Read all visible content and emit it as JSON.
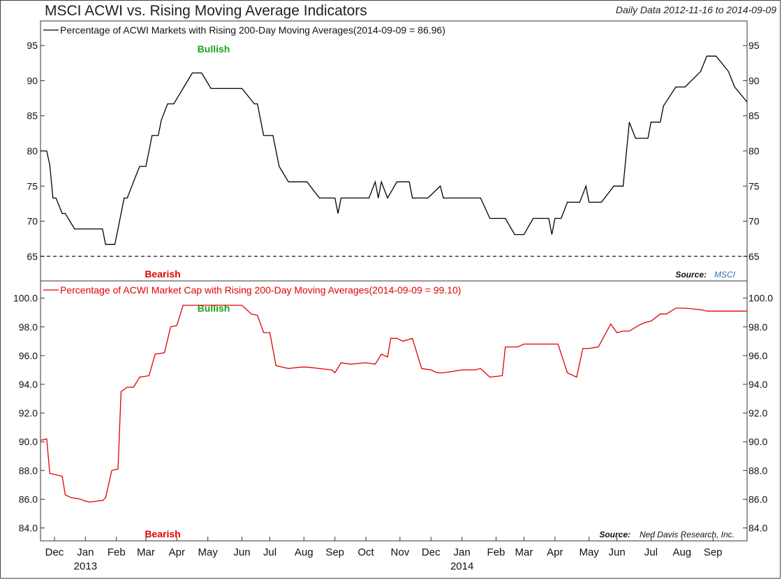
{
  "header": {
    "title": "MSCI ACWI vs. Rising Moving Average Indicators",
    "date_range": "Daily Data 2012-11-16 to 2014-09-09"
  },
  "chart_data": [
    {
      "type": "line",
      "title": "MSCI ACWI vs. Rising Moving Average Indicators",
      "legend": "Percentage of ACWI Markets with Rising 200-Day Moving Averages(2014-09-09 = 86.96)",
      "color": "#000000",
      "y_ticks": [
        "95",
        "90",
        "85",
        "80",
        "75",
        "70",
        "65"
      ],
      "ylim": [
        61.5,
        98.5
      ],
      "reference_line": 65,
      "bullish_label": "Bullish",
      "bearish_label": "Bearish",
      "source_label": "Source:",
      "source_value": "MSCI",
      "xlim": [
        0,
        22.8
      ],
      "x": [
        0,
        0.2,
        0.3,
        0.4,
        0.5,
        0.7,
        0.8,
        1.1,
        1.3,
        1.4,
        2.0,
        2.1,
        2.4,
        2.5,
        2.7,
        2.8,
        3.0,
        3.2,
        3.4,
        3.5,
        3.6,
        3.8,
        3.9,
        4.1,
        4.3,
        4.6,
        4.9,
        5.2,
        5.5,
        6.0,
        6.5,
        6.9,
        7.0,
        7.2,
        7.5,
        7.7,
        8.0,
        8.4,
        8.5,
        8.6,
        9.0,
        9.5,
        9.6,
        9.7,
        10.0,
        10.5,
        10.6,
        10.8,
        10.9,
        11.0,
        11.2,
        11.5,
        11.9,
        12.0,
        12.5,
        12.9,
        13.0,
        13.1,
        13.2,
        13.5,
        14.0,
        14.2,
        14.5,
        14.8,
        15.0,
        15.3,
        15.6,
        15.9,
        16.0,
        16.4,
        16.5,
        16.6,
        16.8,
        17.0,
        17.4,
        17.6,
        17.7,
        18.1,
        18.5,
        18.8,
        19.0,
        19.2,
        19.4,
        19.6,
        19.7,
        20.0,
        20.1,
        20.5,
        20.8,
        21.3,
        21.5,
        21.8,
        22.2,
        22.4,
        22.8
      ],
      "values": [
        80.0,
        80.0,
        78.0,
        73.3,
        73.3,
        71.1,
        71.1,
        68.9,
        68.9,
        68.9,
        68.9,
        66.7,
        66.7,
        68.9,
        73.3,
        73.3,
        75.6,
        77.8,
        77.8,
        80.0,
        82.2,
        82.2,
        84.4,
        86.7,
        86.7,
        88.9,
        91.1,
        91.1,
        88.9,
        88.9,
        88.9,
        86.7,
        86.7,
        82.2,
        82.2,
        77.8,
        75.6,
        75.6,
        75.6,
        75.6,
        73.3,
        73.3,
        71.1,
        73.3,
        73.3,
        73.3,
        73.3,
        75.6,
        73.3,
        75.6,
        73.3,
        75.6,
        75.6,
        73.3,
        73.3,
        75.0,
        73.3,
        73.3,
        73.3,
        73.3,
        73.3,
        73.3,
        70.4,
        70.4,
        70.4,
        68.1,
        68.1,
        70.4,
        70.4,
        70.4,
        68.1,
        70.4,
        70.4,
        72.7,
        72.7,
        75.0,
        72.7,
        72.7,
        75.0,
        75.0,
        84.1,
        81.8,
        81.8,
        81.8,
        84.1,
        84.1,
        86.4,
        89.1,
        89.1,
        91.3,
        93.5,
        93.5,
        91.3,
        89.1,
        86.96
      ]
    },
    {
      "type": "line",
      "legend": "Percentage of ACWI Market Cap with Rising 200-Day Moving Averages(2014-09-09 = 99.10)",
      "color": "#e00000",
      "y_ticks": [
        "100.0",
        "98.0",
        "96.0",
        "94.0",
        "92.0",
        "90.0",
        "88.0",
        "86.0",
        "84.0"
      ],
      "ylim": [
        83.1,
        101.2
      ],
      "bullish_label": "Bullish",
      "bearish_label": "Bearish",
      "source_label": "Source:",
      "source_value": "Ned Davis Research, Inc.",
      "xlim": [
        0,
        22.8
      ],
      "x": [
        0,
        0.2,
        0.3,
        0.5,
        0.7,
        0.8,
        1.0,
        1.3,
        1.4,
        1.6,
        1.9,
        2.0,
        2.1,
        2.3,
        2.5,
        2.6,
        2.8,
        2.9,
        3.0,
        3.2,
        3.5,
        3.7,
        4.0,
        4.2,
        4.4,
        4.6,
        4.9,
        5.2,
        5.5,
        6.0,
        6.5,
        6.8,
        7.0,
        7.2,
        7.4,
        7.6,
        8.0,
        8.4,
        8.6,
        9.0,
        9.4,
        9.5,
        9.7,
        10.0,
        10.5,
        10.8,
        11.0,
        11.2,
        11.3,
        11.5,
        11.7,
        12.0,
        12.3,
        12.6,
        12.8,
        13.0,
        13.3,
        13.6,
        14.0,
        14.2,
        14.5,
        14.9,
        15.0,
        15.2,
        15.4,
        15.6,
        16.0,
        16.3,
        16.7,
        17.0,
        17.3,
        17.5,
        17.7,
        18.0,
        18.4,
        18.6,
        18.8,
        19.0,
        19.3,
        19.5,
        19.7,
        20.0,
        20.2,
        20.5,
        20.8,
        21.3,
        21.5,
        22.0,
        22.2,
        22.4,
        22.8
      ],
      "values": [
        90.1,
        90.2,
        87.8,
        87.7,
        87.6,
        86.3,
        86.1,
        86.0,
        85.9,
        85.8,
        85.9,
        85.9,
        86.1,
        88.0,
        88.1,
        93.5,
        93.8,
        93.8,
        93.8,
        94.5,
        94.6,
        96.1,
        96.2,
        98.0,
        98.1,
        99.5,
        99.5,
        99.5,
        99.5,
        99.5,
        99.5,
        98.9,
        98.8,
        97.6,
        97.6,
        95.3,
        95.1,
        95.2,
        95.2,
        95.1,
        95.0,
        94.8,
        95.5,
        95.4,
        95.5,
        95.4,
        96.1,
        95.9,
        97.2,
        97.2,
        97.0,
        97.2,
        95.1,
        95.0,
        94.8,
        94.8,
        94.9,
        95.0,
        95.0,
        95.1,
        94.5,
        94.6,
        96.6,
        96.6,
        96.6,
        96.8,
        96.8,
        96.8,
        96.8,
        94.8,
        94.5,
        96.5,
        96.5,
        96.6,
        98.2,
        97.6,
        97.7,
        97.7,
        98.1,
        98.3,
        98.4,
        98.9,
        98.9,
        99.3,
        99.3,
        99.2,
        99.1,
        99.1,
        99.1,
        99.1,
        99.1
      ]
    }
  ],
  "x_axis": {
    "months": [
      "Dec",
      "Jan",
      "Feb",
      "Mar",
      "Apr",
      "May",
      "Jun",
      "Jul",
      "Aug",
      "Sep",
      "Oct",
      "Nov",
      "Dec",
      "Jan",
      "Feb",
      "Mar",
      "Apr",
      "May",
      "Jun",
      "Jul",
      "Aug",
      "Sep"
    ],
    "month_positions": [
      0.45,
      1.45,
      2.45,
      3.4,
      4.4,
      5.4,
      6.5,
      7.4,
      8.5,
      9.5,
      10.5,
      11.6,
      12.6,
      13.6,
      14.7,
      15.6,
      16.6,
      17.7,
      18.6,
      19.7,
      20.7,
      21.7
    ],
    "years": [
      "2013",
      "2014"
    ],
    "year_positions": [
      1.45,
      13.6
    ]
  }
}
